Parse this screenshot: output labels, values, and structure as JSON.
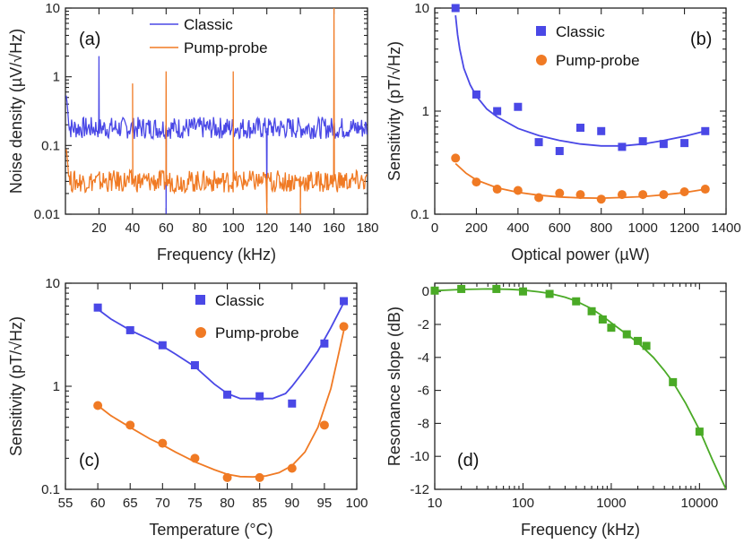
{
  "colors": {
    "classic": "#4a48e6",
    "pump": "#f07a24",
    "green": "#4aaa26"
  },
  "chart_data": [
    {
      "type": "line",
      "panel": "(a)",
      "xlabel": "Frequency (kHz)",
      "ylabel": "Noise density (µV/√Hz)",
      "xlim": [
        0,
        180
      ],
      "ylim": [
        0.01,
        10
      ],
      "yscale": "log",
      "xticks": [
        "20",
        "40",
        "60",
        "80",
        "100",
        "120",
        "140",
        "160",
        "180"
      ],
      "yticks": [
        "0.01",
        "0.1",
        "1",
        "10"
      ],
      "legend": [
        "Classic",
        "Pump-probe"
      ],
      "series": [
        {
          "name": "Classic",
          "baseline": 0.18,
          "spikes": [
            {
              "x": 20,
              "y": 2.0
            },
            {
              "x": 60,
              "y": 0.01
            },
            {
              "x": 120,
              "y": 0.015
            }
          ]
        },
        {
          "name": "Pump-probe",
          "baseline": 0.03,
          "spikes": [
            {
              "x": 40,
              "y": 0.8
            },
            {
              "x": 60,
              "y": 1.2
            },
            {
              "x": 100,
              "y": 1.2
            },
            {
              "x": 120,
              "y": 0.01
            },
            {
              "x": 140,
              "y": 0.01
            },
            {
              "x": 160,
              "y": 10
            }
          ]
        }
      ]
    },
    {
      "type": "scatter",
      "panel": "(b)",
      "xlabel": "Optical power (µW)",
      "ylabel": "Sensitivity (pT/√Hz)",
      "xlim": [
        0,
        1400
      ],
      "ylim": [
        0.1,
        10
      ],
      "yscale": "log",
      "xticks": [
        "0",
        "200",
        "400",
        "600",
        "800",
        "1000",
        "1200",
        "1400"
      ],
      "yticks": [
        "0.1",
        "1",
        "10"
      ],
      "legend": [
        "Classic",
        "Pump-probe"
      ],
      "series": [
        {
          "name": "Classic",
          "marker": "square",
          "x": [
            100,
            200,
            300,
            400,
            500,
            600,
            700,
            800,
            900,
            1000,
            1100,
            1200,
            1300
          ],
          "values": [
            10,
            1.45,
            1.0,
            1.1,
            0.5,
            0.41,
            0.69,
            0.64,
            0.45,
            0.51,
            0.48,
            0.49,
            0.64
          ],
          "fit": {
            "x": [
              100,
              110,
              120,
              140,
              170,
              200,
              250,
              300,
              400,
              500,
              600,
              700,
              800,
              900,
              1000,
              1100,
              1200,
              1300
            ],
            "values": [
              8.5,
              5.5,
              4.0,
              2.6,
              1.8,
              1.4,
              1.05,
              0.88,
              0.68,
              0.58,
              0.52,
              0.48,
              0.46,
              0.46,
              0.48,
              0.52,
              0.57,
              0.64
            ]
          }
        },
        {
          "name": "Pump-probe",
          "marker": "circle",
          "x": [
            100,
            200,
            300,
            400,
            500,
            600,
            700,
            800,
            900,
            1000,
            1100,
            1200,
            1300
          ],
          "values": [
            0.35,
            0.205,
            0.175,
            0.17,
            0.145,
            0.16,
            0.155,
            0.14,
            0.155,
            0.155,
            0.155,
            0.165,
            0.175
          ],
          "fit": {
            "x": [
              100,
              150,
              200,
              300,
              400,
              500,
              600,
              700,
              800,
              900,
              1000,
              1100,
              1200,
              1300
            ],
            "values": [
              0.31,
              0.25,
              0.215,
              0.18,
              0.163,
              0.153,
              0.147,
              0.144,
              0.143,
              0.145,
              0.148,
              0.154,
              0.162,
              0.175
            ]
          }
        }
      ]
    },
    {
      "type": "scatter",
      "panel": "(c)",
      "xlabel": "Temperature (°C)",
      "ylabel": "Sensitivity (pT/√Hz)",
      "xlim": [
        55,
        100
      ],
      "ylim": [
        0.1,
        10
      ],
      "yscale": "log",
      "xticks": [
        "55",
        "60",
        "65",
        "70",
        "75",
        "80",
        "85",
        "90",
        "95",
        "100"
      ],
      "yticks": [
        "0.1",
        "1",
        "10"
      ],
      "legend": [
        "Classic",
        "Pump-probe"
      ],
      "series": [
        {
          "name": "Classic",
          "marker": "square",
          "x": [
            60,
            65,
            70,
            75,
            80,
            85,
            90,
            95,
            98
          ],
          "values": [
            5.8,
            3.5,
            2.5,
            1.6,
            0.83,
            0.8,
            0.68,
            2.6,
            6.7
          ],
          "fit": {
            "x": [
              60,
              62,
              65,
              68,
              70,
              72,
              75,
              78,
              80,
              82,
              85,
              87,
              89,
              90,
              92,
              94,
              96,
              98
            ],
            "values": [
              5.6,
              4.5,
              3.5,
              2.85,
              2.45,
              2.05,
              1.55,
              1.05,
              0.85,
              0.76,
              0.76,
              0.76,
              0.85,
              1.0,
              1.45,
              2.2,
              3.7,
              6.5
            ]
          }
        },
        {
          "name": "Pump-probe",
          "marker": "circle",
          "x": [
            60,
            65,
            70,
            75,
            80,
            85,
            90,
            95,
            98
          ],
          "values": [
            0.65,
            0.42,
            0.28,
            0.2,
            0.13,
            0.13,
            0.16,
            0.42,
            3.8
          ],
          "fit": {
            "x": [
              60,
              62,
              65,
              68,
              70,
              72,
              75,
              78,
              80,
              82,
              84,
              86,
              88,
              90,
              92,
              94,
              96,
              97,
              98
            ],
            "values": [
              0.65,
              0.52,
              0.4,
              0.31,
              0.27,
              0.23,
              0.185,
              0.155,
              0.14,
              0.133,
              0.132,
              0.135,
              0.145,
              0.17,
              0.23,
              0.4,
              0.95,
              1.8,
              3.5
            ]
          }
        }
      ]
    },
    {
      "type": "scatter",
      "panel": "(d)",
      "xlabel": "Frequency (kHz)",
      "ylabel": "Resonance slope (dB)",
      "xscale": "log",
      "xlim": [
        10,
        20000
      ],
      "ylim": [
        -12,
        0.5
      ],
      "xticks": [
        "10",
        "100",
        "1000",
        "10000"
      ],
      "yticks": [
        "0",
        "-2",
        "-4",
        "-6",
        "-8",
        "-10",
        "-12"
      ],
      "series": [
        {
          "name": "Resonance slope",
          "marker": "square",
          "x": [
            10,
            20,
            50,
            100,
            200,
            400,
            600,
            800,
            1000,
            1500,
            2000,
            2500,
            5000,
            10000
          ],
          "values": [
            0.05,
            0.15,
            0.15,
            0.0,
            -0.15,
            -0.6,
            -1.2,
            -1.7,
            -2.2,
            -2.6,
            -3.0,
            -3.3,
            -5.5,
            -8.5
          ],
          "fit": {
            "x": [
              10,
              20,
              40,
              70,
              100,
              150,
              200,
              300,
              400,
              600,
              800,
              1000,
              1500,
              2000,
              3000,
              4000,
              5000,
              7000,
              10000,
              14000,
              20000
            ],
            "values": [
              0.05,
              0.12,
              0.15,
              0.13,
              0.08,
              -0.02,
              -0.12,
              -0.35,
              -0.58,
              -1.05,
              -1.5,
              -1.9,
              -2.6,
              -3.1,
              -4.0,
              -4.8,
              -5.5,
              -6.8,
              -8.4,
              -10.2,
              -12.0
            ]
          }
        }
      ]
    }
  ]
}
